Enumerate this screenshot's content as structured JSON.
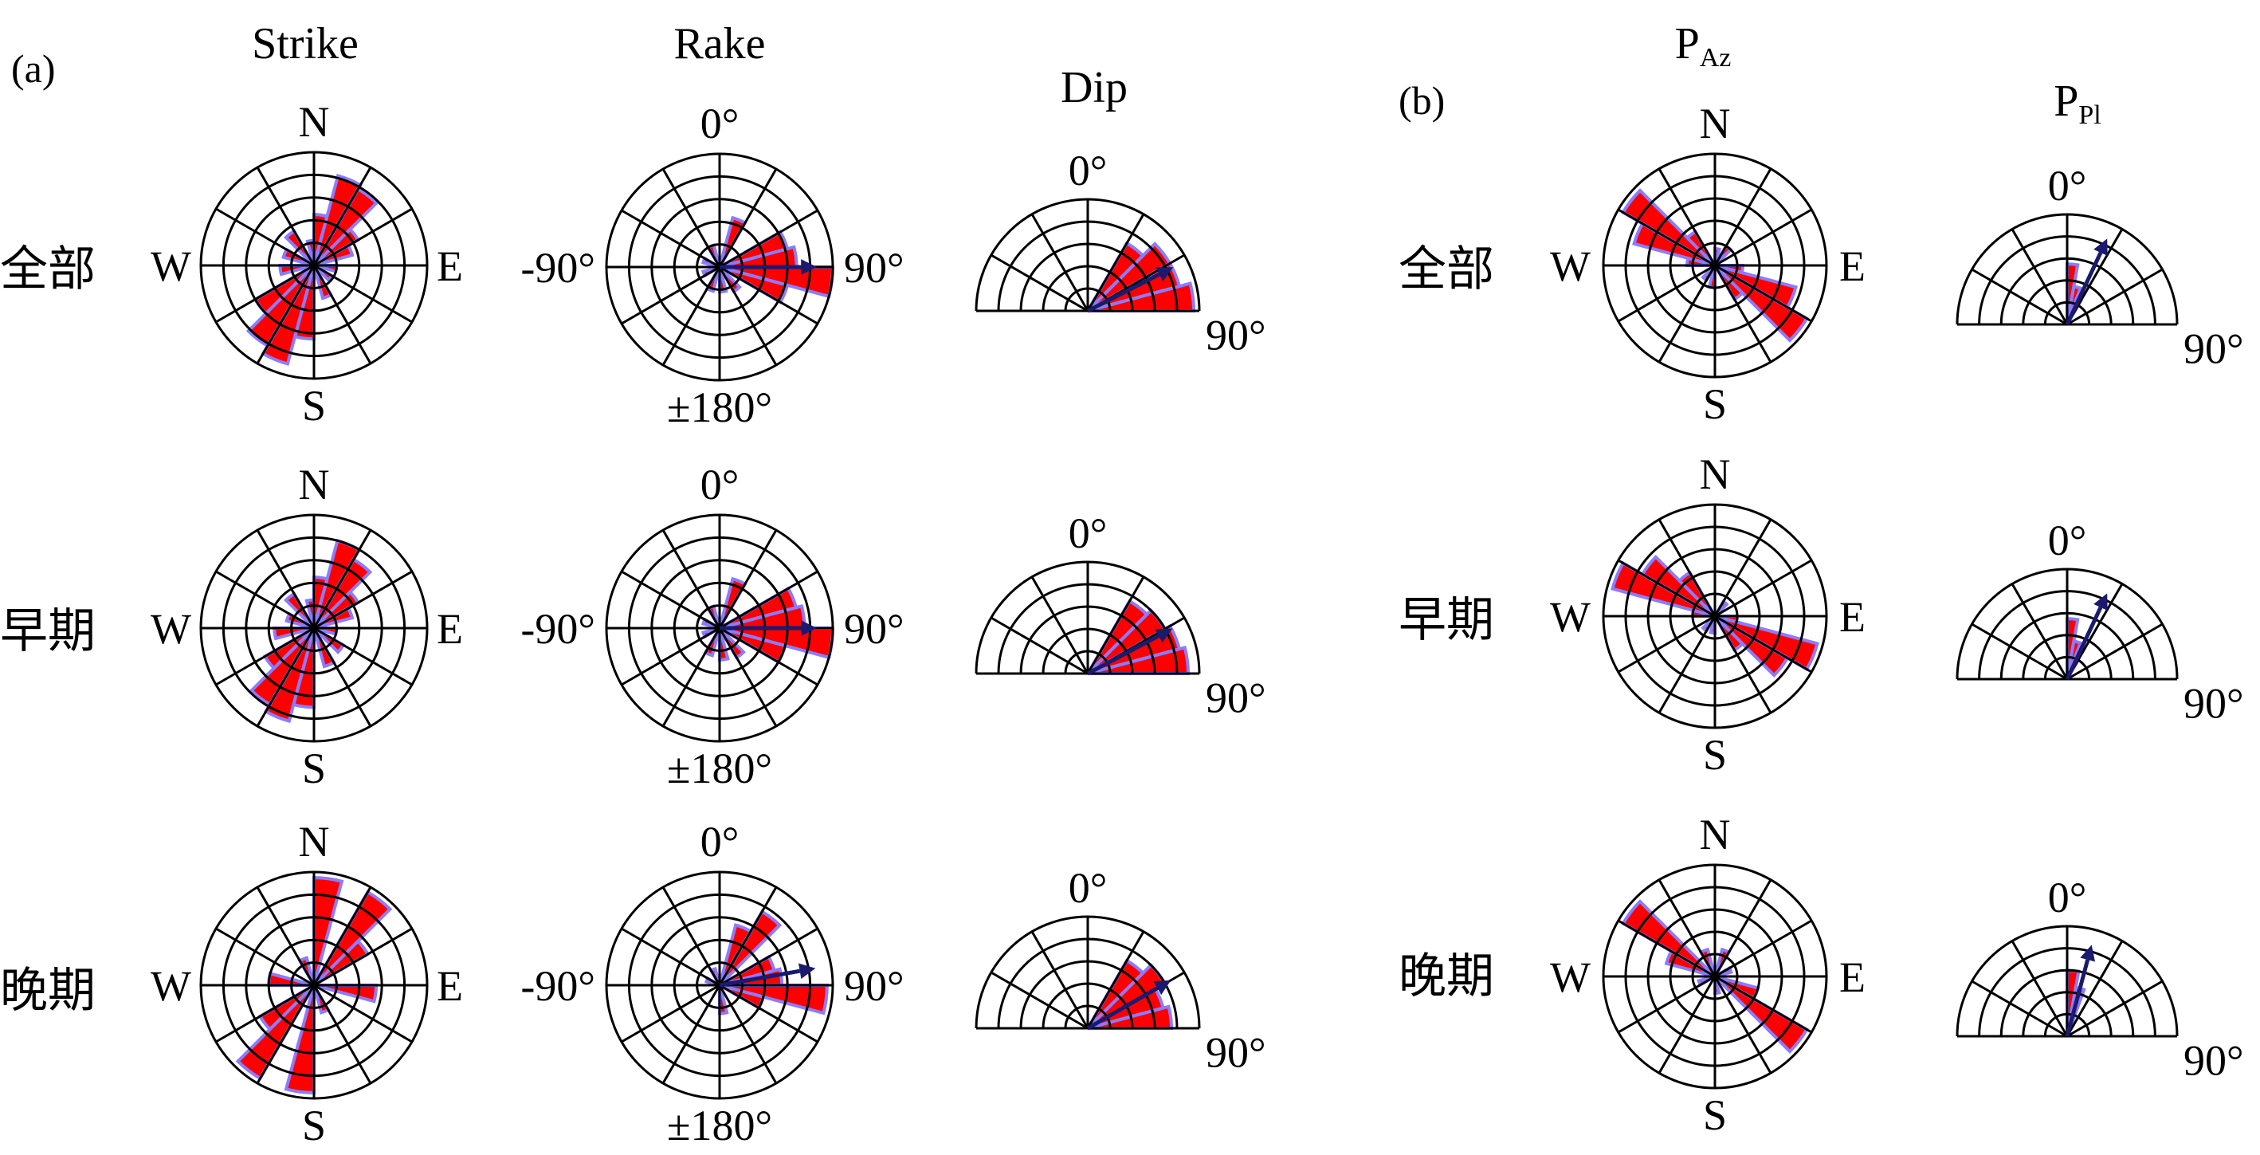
{
  "panel_labels": {
    "a": "(a)",
    "b": "(b)"
  },
  "column_titles": {
    "strike": "Strike",
    "rake": "Rake",
    "dip": "Dip",
    "paz_main": "P",
    "paz_sub": "Az",
    "ppl_main": "P",
    "ppl_sub": "Pl"
  },
  "row_labels": [
    "全部",
    "早期",
    "晚期"
  ],
  "compass": {
    "n": "N",
    "s": "S",
    "e": "E",
    "w": "W"
  },
  "rake_ticks": {
    "top": "0°",
    "left": "-90°",
    "right": "90°",
    "bottom": "±180°"
  },
  "half_ticks": {
    "top": "0°",
    "right": "90°"
  },
  "colors": {
    "fill": "#ff0000",
    "edge": "#8a7cff",
    "arrow": "#1a1a6e",
    "grid": "#000000"
  },
  "chart_data": [
    {
      "type": "rose",
      "title": "Strike",
      "rows": [
        "全部",
        "早期",
        "晚期"
      ],
      "bin_width_deg": 15,
      "bins": [
        [
          {
            "dir": 7.5,
            "r": 0.45
          },
          {
            "dir": 22.5,
            "r": 0.82
          },
          {
            "dir": 37.5,
            "r": 0.78
          },
          {
            "dir": 52.5,
            "r": 0.45
          },
          {
            "dir": 67.5,
            "r": 0.35
          },
          {
            "dir": 97.5,
            "r": 0.2
          },
          {
            "dir": 127.5,
            "r": 0.18
          },
          {
            "dir": 157.5,
            "r": 0.3
          },
          {
            "dir": 187.5,
            "r": 0.65
          },
          {
            "dir": 202.5,
            "r": 0.9
          },
          {
            "dir": 217.5,
            "r": 0.82
          },
          {
            "dir": 232.5,
            "r": 0.6
          },
          {
            "dir": 262.5,
            "r": 0.3
          },
          {
            "dir": 292.5,
            "r": 0.28
          },
          {
            "dir": 322.5,
            "r": 0.35
          },
          {
            "dir": 352.5,
            "r": 0.22
          }
        ],
        [
          {
            "dir": 7.5,
            "r": 0.45
          },
          {
            "dir": 22.5,
            "r": 0.8
          },
          {
            "dir": 37.5,
            "r": 0.7
          },
          {
            "dir": 52.5,
            "r": 0.45
          },
          {
            "dir": 67.5,
            "r": 0.35
          },
          {
            "dir": 97.5,
            "r": 0.2
          },
          {
            "dir": 127.5,
            "r": 0.3
          },
          {
            "dir": 157.5,
            "r": 0.35
          },
          {
            "dir": 187.5,
            "r": 0.7
          },
          {
            "dir": 202.5,
            "r": 0.85
          },
          {
            "dir": 217.5,
            "r": 0.78
          },
          {
            "dir": 232.5,
            "r": 0.5
          },
          {
            "dir": 262.5,
            "r": 0.35
          },
          {
            "dir": 292.5,
            "r": 0.25
          },
          {
            "dir": 322.5,
            "r": 0.35
          },
          {
            "dir": 352.5,
            "r": 0.25
          }
        ],
        [
          {
            "dir": 7.5,
            "r": 0.95
          },
          {
            "dir": 37.5,
            "r": 0.95
          },
          {
            "dir": 52.5,
            "r": 0.55
          },
          {
            "dir": 97.5,
            "r": 0.55
          },
          {
            "dir": 157.5,
            "r": 0.25
          },
          {
            "dir": 187.5,
            "r": 0.95
          },
          {
            "dir": 217.5,
            "r": 0.95
          },
          {
            "dir": 232.5,
            "r": 0.55
          },
          {
            "dir": 277.5,
            "r": 0.4
          },
          {
            "dir": 337.5,
            "r": 0.25
          }
        ]
      ]
    },
    {
      "type": "rose",
      "title": "Rake",
      "rows": [
        "全部",
        "早期",
        "晚期"
      ],
      "bin_width_deg": 15,
      "bins": [
        [
          {
            "dir": 22.5,
            "r": 0.45
          },
          {
            "dir": 67.5,
            "r": 0.62
          },
          {
            "dir": 82.5,
            "r": 0.68
          },
          {
            "dir": 97.5,
            "r": 1.0
          },
          {
            "dir": 112.5,
            "r": 0.62
          },
          {
            "dir": 142.5,
            "r": 0.25
          },
          {
            "dir": 172.5,
            "r": 0.22
          },
          {
            "dir": 202.5,
            "r": 0.22
          },
          {
            "dir": 247.5,
            "r": 0.15
          },
          {
            "dir": 292.5,
            "r": 0.15
          },
          {
            "dir": 337.5,
            "r": 0.2
          }
        ],
        [
          {
            "dir": 22.5,
            "r": 0.45
          },
          {
            "dir": 67.5,
            "r": 0.7
          },
          {
            "dir": 82.5,
            "r": 0.75
          },
          {
            "dir": 97.5,
            "r": 1.0
          },
          {
            "dir": 112.5,
            "r": 0.6
          },
          {
            "dir": 142.5,
            "r": 0.3
          },
          {
            "dir": 172.5,
            "r": 0.28
          },
          {
            "dir": 202.5,
            "r": 0.25
          },
          {
            "dir": 247.5,
            "r": 0.15
          },
          {
            "dir": 292.5,
            "r": 0.15
          },
          {
            "dir": 337.5,
            "r": 0.2
          }
        ],
        [
          {
            "dir": 22.5,
            "r": 0.55
          },
          {
            "dir": 37.5,
            "r": 0.75
          },
          {
            "dir": 67.5,
            "r": 0.5
          },
          {
            "dir": 82.5,
            "r": 0.55
          },
          {
            "dir": 97.5,
            "r": 0.95
          },
          {
            "dir": 112.5,
            "r": 0.4
          },
          {
            "dir": 172.5,
            "r": 0.25
          },
          {
            "dir": 292.5,
            "r": 0.12
          },
          {
            "dir": 337.5,
            "r": 0.15
          }
        ]
      ],
      "mean_direction_deg": [
        90,
        90,
        80
      ]
    },
    {
      "type": "half-rose",
      "title": "Dip",
      "rows": [
        "全部",
        "早期",
        "晚期"
      ],
      "bin_width_deg": 15,
      "bins": [
        [
          {
            "dir": 37.5,
            "r": 0.7
          },
          {
            "dir": 52.5,
            "r": 0.85
          },
          {
            "dir": 67.5,
            "r": 0.85
          },
          {
            "dir": 82.5,
            "r": 0.95
          }
        ],
        [
          {
            "dir": 37.5,
            "r": 0.75
          },
          {
            "dir": 52.5,
            "r": 0.8
          },
          {
            "dir": 67.5,
            "r": 0.85
          },
          {
            "dir": 82.5,
            "r": 0.9
          }
        ],
        [
          {
            "dir": 37.5,
            "r": 0.7
          },
          {
            "dir": 52.5,
            "r": 0.8
          },
          {
            "dir": 67.5,
            "r": 0.7
          },
          {
            "dir": 82.5,
            "r": 0.75
          }
        ]
      ],
      "mean_direction_deg": [
        63,
        62,
        60
      ]
    },
    {
      "type": "rose",
      "title": "PAz",
      "rows": [
        "全部",
        "早期",
        "晚期"
      ],
      "bin_width_deg": 15,
      "bins": [
        [
          {
            "dir": 7.5,
            "r": 0.15
          },
          {
            "dir": 37.5,
            "r": 0.2
          },
          {
            "dir": 97.5,
            "r": 0.25
          },
          {
            "dir": 112.5,
            "r": 0.75
          },
          {
            "dir": 127.5,
            "r": 0.95
          },
          {
            "dir": 142.5,
            "r": 0.35
          },
          {
            "dir": 187.5,
            "r": 0.2
          },
          {
            "dir": 217.5,
            "r": 0.15
          },
          {
            "dir": 277.5,
            "r": 0.25
          },
          {
            "dir": 292.5,
            "r": 0.75
          },
          {
            "dir": 307.5,
            "r": 0.95
          },
          {
            "dir": 322.5,
            "r": 0.35
          }
        ],
        [
          {
            "dir": 37.5,
            "r": 0.15
          },
          {
            "dir": 97.5,
            "r": 0.2
          },
          {
            "dir": 112.5,
            "r": 0.95
          },
          {
            "dir": 127.5,
            "r": 0.75
          },
          {
            "dir": 142.5,
            "r": 0.35
          },
          {
            "dir": 187.5,
            "r": 0.15
          },
          {
            "dir": 217.5,
            "r": 0.15
          },
          {
            "dir": 277.5,
            "r": 0.2
          },
          {
            "dir": 292.5,
            "r": 0.95
          },
          {
            "dir": 307.5,
            "r": 0.75
          },
          {
            "dir": 322.5,
            "r": 0.45
          }
        ],
        [
          {
            "dir": 22.5,
            "r": 0.25
          },
          {
            "dir": 67.5,
            "r": 0.15
          },
          {
            "dir": 112.5,
            "r": 0.4
          },
          {
            "dir": 127.5,
            "r": 0.95
          },
          {
            "dir": 172.5,
            "r": 0.15
          },
          {
            "dir": 247.5,
            "r": 0.15
          },
          {
            "dir": 292.5,
            "r": 0.45
          },
          {
            "dir": 307.5,
            "r": 0.95
          },
          {
            "dir": 337.5,
            "r": 0.25
          }
        ]
      ]
    },
    {
      "type": "half-rose",
      "title": "PPl",
      "rows": [
        "全部",
        "早期",
        "晚期"
      ],
      "bin_width_deg": 10,
      "bins": [
        [
          {
            "dir": 5,
            "r": 0.55
          },
          {
            "dir": 15,
            "r": 0.35
          },
          {
            "dir": 25,
            "r": 0.25
          }
        ],
        [
          {
            "dir": 5,
            "r": 0.55
          },
          {
            "dir": 15,
            "r": 0.35
          },
          {
            "dir": 25,
            "r": 0.2
          }
        ],
        [
          {
            "dir": 5,
            "r": 0.6
          },
          {
            "dir": 15,
            "r": 0.45
          }
        ]
      ],
      "mean_direction_deg": [
        25,
        25,
        15
      ]
    }
  ]
}
